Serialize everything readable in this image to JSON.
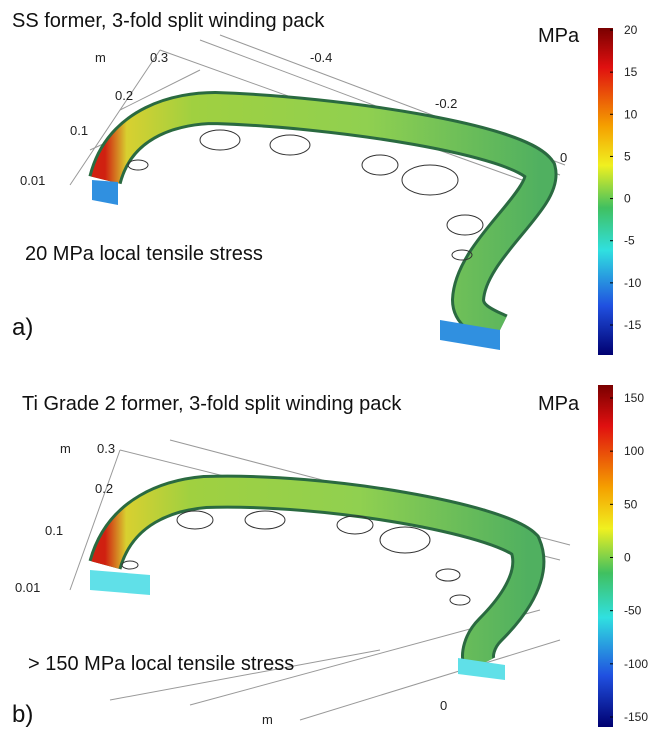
{
  "panels": [
    {
      "title": "SS former, 3-fold split winding pack",
      "annotation": "20 MPa local tensile stress",
      "label": "a)",
      "colorbar": {
        "unit": "MPa",
        "ticks": [
          20,
          15,
          10,
          5,
          0,
          -5,
          -10,
          -15
        ]
      },
      "axis_labels": [
        "m",
        "0.3",
        "0.2",
        "0.1",
        "0.01",
        "-0.4",
        "-0.2",
        "0"
      ]
    },
    {
      "title": "Ti Grade 2 former, 3-fold split winding pack",
      "annotation": "> 150 MPa local tensile stress",
      "label": "b)",
      "colorbar": {
        "unit": "MPa",
        "ticks": [
          150,
          100,
          50,
          0,
          -50,
          -100,
          -150
        ]
      },
      "axis_labels": [
        "m",
        "0.3",
        "0.2",
        "0.1",
        "0.01",
        "m",
        "0"
      ]
    }
  ]
}
